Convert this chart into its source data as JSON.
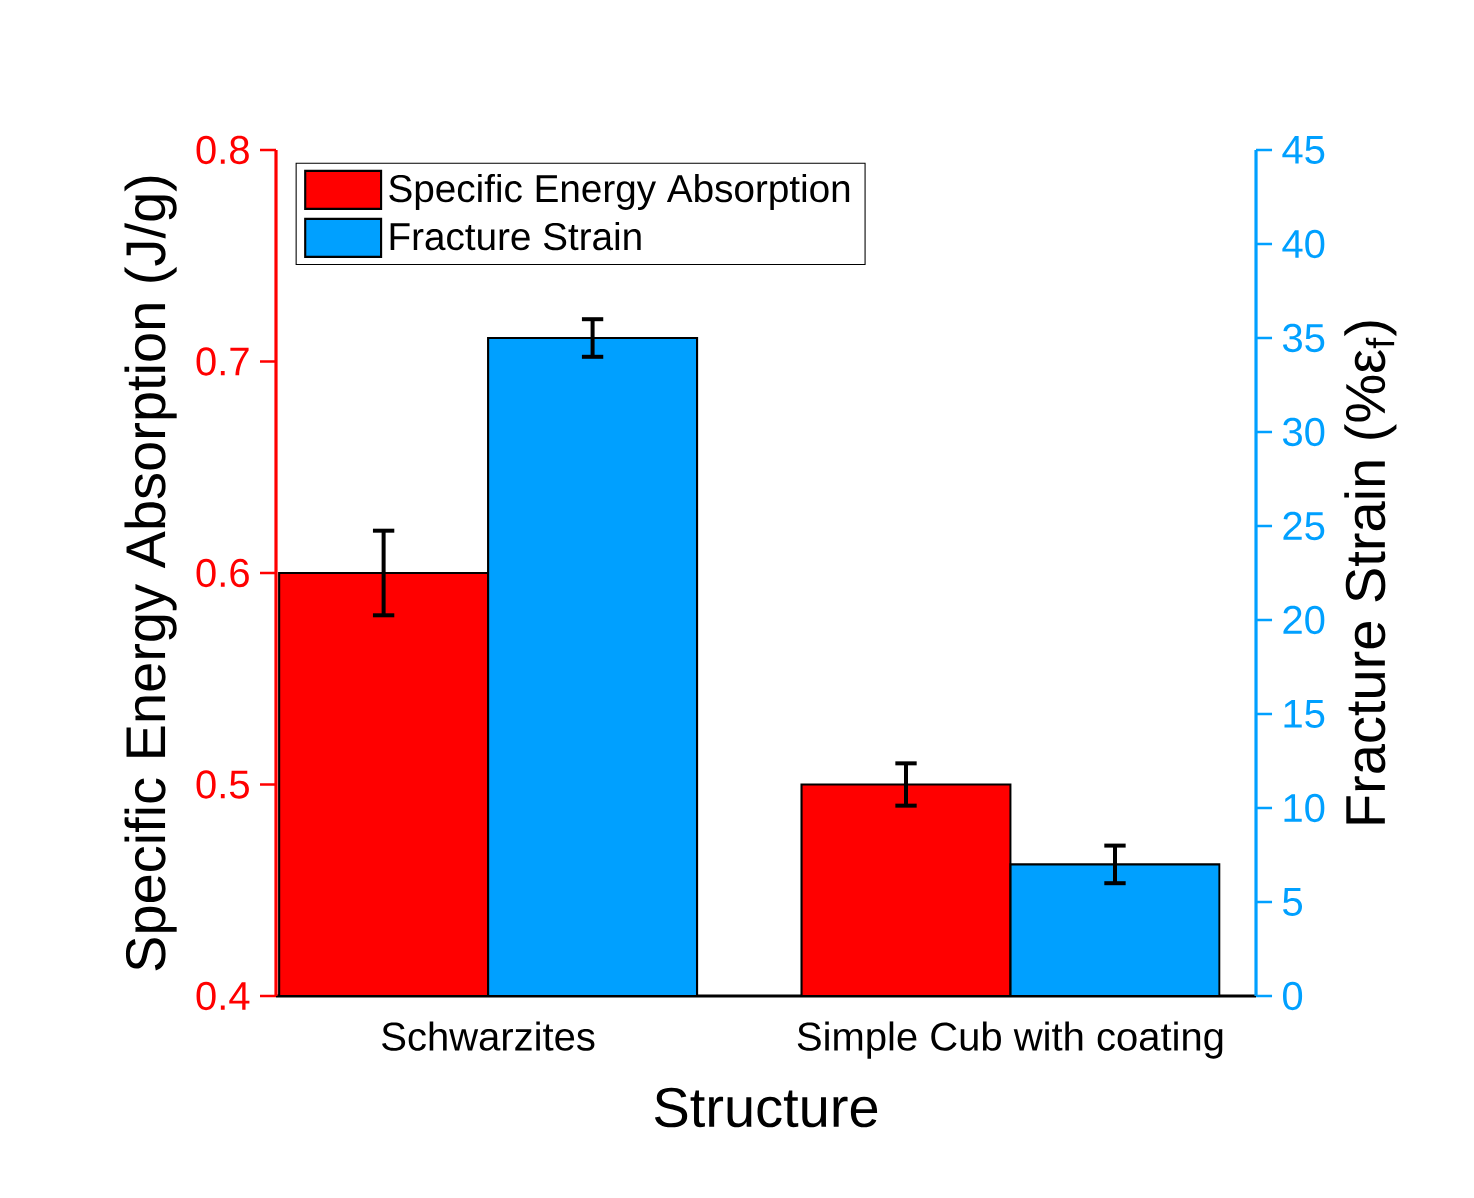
{
  "chart_data": {
    "type": "bar",
    "xlabel": "Structure",
    "ylabel": "Specific Energy Absorption (J/g)",
    "y2label": "Fracture Strain (%ε$_{f}$)",
    "categories": [
      "Schwarzites",
      "Simple Cub with coating"
    ],
    "series": [
      {
        "name": "Specific Energy Absorption",
        "color": "#ff0000",
        "values": [
          0.6,
          0.5
        ],
        "errors": [
          0.02,
          0.01
        ]
      },
      {
        "name": "Fracture Strain",
        "color": "#00a0ff",
        "values": [
          35,
          7
        ],
        "errors": [
          1,
          1
        ],
        "axis": "y2"
      }
    ],
    "ylim": [
      0.4,
      0.8
    ],
    "yticks": [
      0.4,
      0.5,
      0.6,
      0.7,
      0.8
    ],
    "y2lim": [
      0,
      45
    ],
    "y2ticks": [
      0,
      5,
      10,
      15,
      20,
      25,
      30,
      35,
      40,
      45
    ],
    "legend": "top left"
  }
}
